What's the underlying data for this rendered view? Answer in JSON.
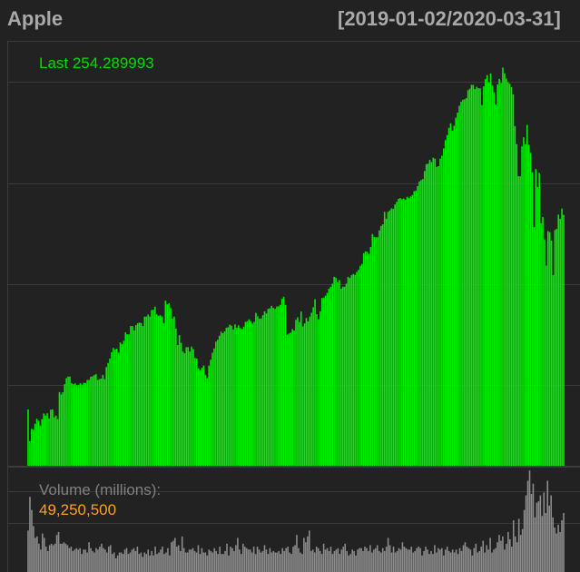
{
  "chart_data": {
    "type": "bar",
    "title": "Apple",
    "date_range": "[2019-01-02/2020-03-31]",
    "x_start": "2019-01-02",
    "x_end": "2020-03-31",
    "grid": true,
    "price_panel": {
      "series_name": "Last",
      "last_label": "Last 254.289993",
      "ylim": [
        130,
        340
      ],
      "gridlines": [
        170,
        220,
        270,
        320
      ],
      "values": [
        157.9,
        142.2,
        148.3,
        147.9,
        150.8,
        153.3,
        152.3,
        150.0,
        153.1,
        155.9,
        154.9,
        156.0,
        153.4,
        157.8,
        157.9,
        154.1,
        154.9,
        153.1,
        166.5,
        165.3,
        166.4,
        170.4,
        173.4,
        174.2,
        174.2,
        170.9,
        170.4,
        170.8,
        169.9,
        170.1,
        170.9,
        170.2,
        171.1,
        171.0,
        172.5,
        172.5,
        174.1,
        174.3,
        174.9,
        175.4,
        172.5,
        172.9,
        173.2,
        175.0,
        172.9,
        178.9,
        180.9,
        183.1,
        186.2,
        188.3,
        187.6,
        188.0,
        186.1,
        191.1,
        190.3,
        191.9,
        196.1,
        195.1,
        195.1,
        199.2,
        199.2,
        197.0,
        199.7,
        200.6,
        200.9,
        200.7,
        199.2,
        203.9,
        203.9,
        204.9,
        203.9,
        207.1,
        207.3,
        208.8,
        205.0,
        204.3,
        204.6,
        204.0,
        200.7,
        211.8,
        209.9,
        210.5,
        208.1,
        202.9,
        203.9,
        197.9,
        189.8,
        194.7,
        190.9,
        186.6,
        185.7,
        188.7,
        188.8,
        186.6,
        189.0,
        187.8,
        183.4,
        183.1,
        178.3,
        177.4,
        178.6,
        179.7,
        175.0,
        173.3,
        179.6,
        182.5,
        186.0,
        188.1,
        191.5,
        192.4,
        194.4,
        196.4,
        195.7,
        196.6,
        198.3,
        198.6,
        199.9,
        199.4,
        197.5,
        200.0,
        198.4,
        199.6,
        198.2,
        197.8,
        198.9,
        201.2,
        201.6,
        202.5,
        201.5,
        200.4,
        201.3,
        205.7,
        204.0,
        202.8,
        203.0,
        204.6,
        206.5,
        205.4,
        207.7,
        208.0,
        209.2,
        208.2,
        207.7,
        208.8,
        209.0,
        209.7,
        212.7,
        213.7,
        209.7,
        194.9,
        195.5,
        196.0,
        197.6,
        197.0,
        202.3,
        203.5,
        201.2,
        206.4,
        199.0,
        200.5,
        203.2,
        201.5,
        203.9,
        205.8,
        208.5,
        212.5,
        205.1,
        202.6,
        206.5,
        213.1,
        213.3,
        214.2,
        215.6,
        217.7,
        218.7,
        220.2,
        223.6,
        223.1,
        220.8,
        222.0,
        217.7,
        218.7,
        218.7,
        220.2,
        223.6,
        223.0,
        224.4,
        225.0,
        224.6,
        226.0,
        227.0,
        229.1,
        230.0,
        235.3,
        236.2,
        236.0,
        235.0,
        238.4,
        244.8,
        243.3,
        243.2,
        243.2,
        246.6,
        248.8,
        249.6,
        255.8,
        252.4,
        255.8,
        256.5,
        257.5,
        257.2,
        259.4,
        260.7,
        262.2,
        262.6,
        262.1,
        262.4,
        261.8,
        263.2,
        262.6,
        263.4,
        264.1,
        266.0,
        266.3,
        268.5,
        270.8,
        271.5,
        272.0,
        276.0,
        279.4,
        279.6,
        281.5,
        280.4,
        282.6,
        282.1,
        278.0,
        278.4,
        282.1,
        283.6,
        287.2,
        291.3,
        293.8,
        297.4,
        299.6,
        296.0,
        298.4,
        302.4,
        304.9,
        308.3,
        310.3,
        311.3,
        311.5,
        312.1,
        316.0,
        316.7,
        318.7,
        318.6,
        316.6,
        317.7,
        317.0,
        316.9,
        308.7,
        317.9,
        321.5,
        323.5,
        320.0,
        324.3,
        318.3,
        315.0,
        308.9,
        318.9,
        321.6,
        319.6,
        327.2,
        324.3,
        321.8,
        320.0,
        319.2,
        317.5,
        313.9,
        298.2,
        289.3,
        273.4,
        273.4,
        288.1,
        292.7,
        289.3,
        298.8,
        289.0,
        285.0,
        275.4,
        248.2,
        277.0,
        268.1,
        275.0,
        250.1,
        253.2,
        242.1,
        229.2,
        246.2,
        245.7,
        241.5,
        224.4,
        246.8,
        247.3,
        254.4,
        252.3,
        257.4,
        254.3
      ]
    },
    "volume_panel": {
      "title": "Volume (millions):",
      "last_value": "49,250,500",
      "ylim": [
        0,
        80
      ],
      "gridlines": [
        42,
        64
      ],
      "values": [
        37,
        60,
        51,
        40,
        32,
        33,
        28,
        24,
        35,
        32,
        26,
        23,
        27,
        28,
        27,
        28,
        34,
        36,
        28,
        28,
        29,
        28,
        27,
        25,
        26,
        23,
        24,
        25,
        24,
        25,
        21,
        24,
        24,
        22,
        29,
        25,
        23,
        22,
        25,
        24,
        26,
        28,
        25,
        24,
        22,
        26,
        27,
        21,
        22,
        18,
        20,
        22,
        22,
        21,
        24,
        25,
        21,
        22,
        24,
        25,
        23,
        26,
        21,
        22,
        19,
        22,
        21,
        24,
        20,
        23,
        20,
        26,
        21,
        22,
        24,
        26,
        21,
        22,
        25,
        20,
        29,
        30,
        32,
        26,
        27,
        23,
        33,
        25,
        22,
        22,
        24,
        24,
        25,
        23,
        22,
        27,
        21,
        25,
        22,
        22,
        20,
        24,
        23,
        22,
        25,
        23,
        21,
        26,
        21,
        21,
        23,
        28,
        20,
        26,
        25,
        23,
        27,
        32,
        24,
        21,
        28,
        26,
        25,
        24,
        24,
        22,
        26,
        21,
        26,
        24,
        22,
        23,
        27,
        24,
        21,
        25,
        22,
        23,
        22,
        22,
        23,
        21,
        25,
        23,
        25,
        26,
        22,
        21,
        26,
        27,
        34,
        25,
        22,
        21,
        32,
        29,
        33,
        37,
        23,
        24,
        22,
        26,
        25,
        23,
        21,
        28,
        24,
        25,
        23,
        26,
        21,
        23,
        24,
        25,
        21,
        24,
        26,
        28,
        23,
        20,
        21,
        24,
        23,
        20,
        24,
        25,
        25,
        23,
        26,
        25,
        23,
        27,
        22,
        24,
        25,
        27,
        23,
        22,
        25,
        23,
        26,
        32,
        27,
        22,
        26,
        22,
        23,
        25,
        24,
        29,
        26,
        25,
        24,
        24,
        26,
        22,
        23,
        25,
        26,
        25,
        20,
        23,
        26,
        24,
        21,
        23,
        21,
        27,
        22,
        25,
        24,
        25,
        20,
        24,
        26,
        23,
        22,
        24,
        22,
        24,
        21,
        25,
        23,
        27,
        29,
        26,
        25,
        24,
        20,
        25,
        28,
        22,
        23,
        26,
        30,
        22,
        27,
        24,
        32,
        22,
        24,
        25,
        29,
        34,
        30,
        33,
        24,
        28,
        36,
        31,
        26,
        44,
        33,
        29,
        45,
        34,
        38,
        51,
        61,
        71,
        78,
        62,
        69,
        46,
        56,
        57,
        61,
        47,
        63,
        49,
        71,
        54,
        61,
        46,
        39,
        35,
        41,
        36,
        44,
        49
      ]
    }
  }
}
